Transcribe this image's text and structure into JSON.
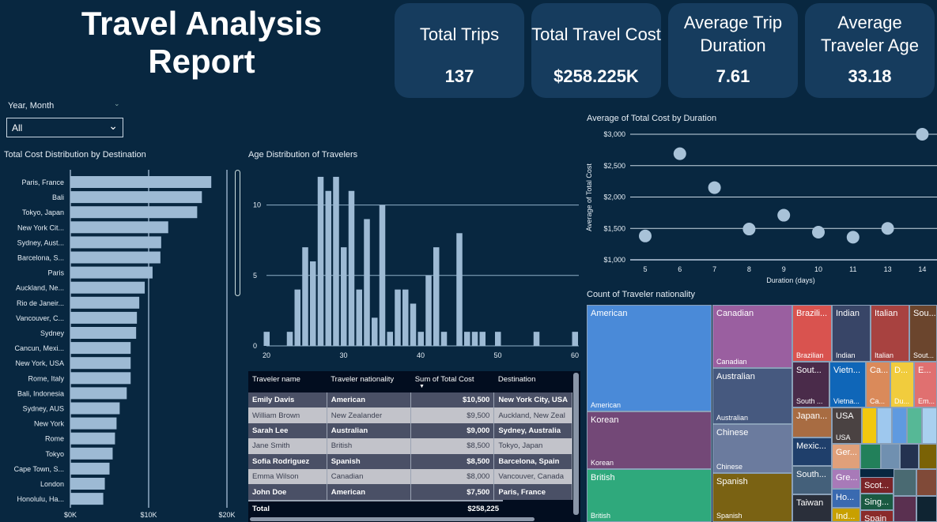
{
  "title": "Travel Analysis Report",
  "kpis": [
    {
      "label": "Total Trips",
      "value": "137"
    },
    {
      "label": "Total Travel Cost",
      "value": "$258.225K"
    },
    {
      "label": "Average Trip Duration",
      "value": "7.61"
    },
    {
      "label": "Average Traveler Age",
      "value": "33.18"
    }
  ],
  "slicer": {
    "label": "Year, Month",
    "value": "All"
  },
  "chart_data": [
    {
      "type": "bar",
      "title": "Total Cost Distribution by Destination",
      "orientation": "horizontal",
      "categories": [
        "Paris, France",
        "Bali",
        "Tokyo, Japan",
        "New York Cit...",
        "Sydney, Aust...",
        "Barcelona, S...",
        "Paris",
        "Auckland, Ne...",
        "Rio de Janeir...",
        "Vancouver, C...",
        "Sydney",
        "Cancun, Mexi...",
        "New York, USA",
        "Rome, Italy",
        "Bali, Indonesia",
        "Sydney, AUS",
        "New York",
        "Rome",
        "Tokyo",
        "Cape Town, S...",
        "London",
        "Honolulu, Ha..."
      ],
      "values": [
        18000,
        16800,
        16200,
        12500,
        11600,
        11500,
        10500,
        9500,
        8800,
        8500,
        8400,
        7700,
        7700,
        7700,
        7200,
        6300,
        5900,
        5700,
        5400,
        5000,
        4400,
        4200
      ],
      "xticks": [
        "$0K",
        "$10K",
        "$20K"
      ],
      "xlim": [
        0,
        20000
      ],
      "grid": true,
      "color": "#9dbad4"
    },
    {
      "type": "bar",
      "title": "Age Distribution of Travelers",
      "x": [
        20,
        23,
        24,
        25,
        26,
        27,
        28,
        29,
        30,
        31,
        32,
        33,
        34,
        35,
        36,
        37,
        38,
        39,
        40,
        41,
        42,
        43,
        45,
        46,
        47,
        48,
        50,
        55,
        60
      ],
      "values": [
        1,
        1,
        4,
        7,
        6,
        12,
        11,
        12,
        7,
        11,
        4,
        9,
        2,
        10,
        1,
        4,
        4,
        3,
        1,
        5,
        7,
        1,
        8,
        1,
        1,
        1,
        1,
        1,
        1
      ],
      "xticks": [
        "20",
        "30",
        "40",
        "50",
        "60"
      ],
      "yticks": [
        "0",
        "5",
        "10"
      ],
      "xlim": [
        20,
        60
      ],
      "ylim": [
        0,
        12.5
      ],
      "grid": true,
      "color": "#9dbad4"
    },
    {
      "type": "scatter",
      "title": "Average of Total Cost by Duration",
      "xlabel": "Duration (days)",
      "ylabel": "Average of Total Cost",
      "categories": [
        "5",
        "6",
        "7",
        "8",
        "9",
        "10",
        "11",
        "13",
        "14"
      ],
      "values": [
        1380,
        2690,
        2150,
        1490,
        1710,
        1440,
        1360,
        1500,
        3000
      ],
      "yticks": [
        "$1,000",
        "$1,500",
        "$2,000",
        "$2,500",
        "$3,000"
      ],
      "ylim": [
        1000,
        3000
      ],
      "grid": true,
      "color": "#a8c2d8"
    }
  ],
  "table": {
    "columns": [
      "Traveler name",
      "Traveler nationality",
      "Sum of Total Cost",
      "Destination"
    ],
    "rows": [
      [
        "Emily Davis",
        "American",
        "$10,500",
        "New York City, USA"
      ],
      [
        "William Brown",
        "New Zealander",
        "$9,500",
        "Auckland, New Zeal"
      ],
      [
        "Sarah Lee",
        "Australian",
        "$9,000",
        "Sydney, Australia"
      ],
      [
        "Jane Smith",
        "British",
        "$8,500",
        "Tokyo, Japan"
      ],
      [
        "Sofia Rodriguez",
        "Spanish",
        "$8,500",
        "Barcelona, Spain"
      ],
      [
        "Emma Wilson",
        "Canadian",
        "$8,000",
        "Vancouver, Canada"
      ],
      [
        "John Doe",
        "American",
        "$7,500",
        "Paris, France"
      ]
    ],
    "total_label": "Total",
    "total_value": "$258,225",
    "sort": "descending"
  },
  "treemap": {
    "title": "Count of Traveler nationality",
    "cells": [
      {
        "t": "American",
        "b": "American",
        "c": "#4a8ad8"
      },
      {
        "t": "Korean",
        "b": "Korean",
        "c": "#734877"
      },
      {
        "t": "British",
        "b": "British",
        "c": "#2fa97c"
      },
      {
        "t": "Canadian",
        "b": "Canadian",
        "c": "#9a5fa0"
      },
      {
        "t": "Australian",
        "b": "Australian",
        "c": "#46597f"
      },
      {
        "t": "Chinese",
        "b": "Chinese",
        "c": "#6b7b9e"
      },
      {
        "t": "Spanish",
        "b": "Spanish",
        "c": "#7a6213"
      },
      {
        "t": "Brazili...",
        "b": "Brazilian",
        "c": "#d9534f"
      },
      {
        "t": "Indian",
        "b": "Indian",
        "c": "#384567"
      },
      {
        "t": "Italian",
        "b": "Italian",
        "c": "#a84240"
      },
      {
        "t": "Sou...",
        "b": "Sout...",
        "c": "#6b452d"
      },
      {
        "t": "Sout...",
        "b": "South ...",
        "c": "#4a2b4a"
      },
      {
        "t": "Vietn...",
        "b": "Vietna...",
        "c": "#0f66b8"
      },
      {
        "t": "Ca...",
        "b": "Ca...",
        "c": "#da8a5a"
      },
      {
        "t": "D...",
        "b": "Du...",
        "c": "#f1cc3d"
      },
      {
        "t": "E...",
        "b": "Em...",
        "c": "#e07070"
      },
      {
        "t": "Japan...",
        "b": "",
        "c": "#a86c42"
      },
      {
        "t": "USA",
        "b": "USA",
        "c": "#4a4242"
      },
      {
        "t": "Mexic...",
        "b": "",
        "c": "#1f3f6b"
      },
      {
        "t": "Ger...",
        "b": "",
        "c": "#e0a07a"
      },
      {
        "t": "South...",
        "b": "",
        "c": "#44607a"
      },
      {
        "t": "Gre...",
        "b": "",
        "c": "#a87ab8"
      },
      {
        "t": "Taiwan",
        "b": "",
        "c": "#2a2f3a"
      },
      {
        "t": "Ho...",
        "b": "",
        "c": "#3a6ab0"
      },
      {
        "t": "Ind...",
        "b": "",
        "c": "#c8a000"
      },
      {
        "t": "Scot...",
        "b": "",
        "c": "#7a2428"
      },
      {
        "t": "Sing...",
        "b": "",
        "c": "#1a5a42"
      },
      {
        "t": "Spain",
        "b": "",
        "c": "#8a2a2a"
      },
      {
        "t": "",
        "b": "",
        "c": "#f2c80f"
      },
      {
        "t": "",
        "b": "",
        "c": "#9ec8ee"
      },
      {
        "t": "",
        "b": "",
        "c": "#5f9ae0"
      },
      {
        "t": "",
        "b": "",
        "c": "#56b896"
      },
      {
        "t": "",
        "b": "",
        "c": "#a9d0ef"
      },
      {
        "t": "",
        "b": "",
        "c": "#22805a"
      },
      {
        "t": "",
        "b": "",
        "c": "#7090b0"
      },
      {
        "t": "",
        "b": "",
        "c": "#243250"
      },
      {
        "t": "",
        "b": "",
        "c": "#7a6205"
      },
      {
        "t": "",
        "b": "",
        "c": "#4a6a72"
      },
      {
        "t": "",
        "b": "",
        "c": "#804a38"
      },
      {
        "t": "",
        "b": "",
        "c": "#5a3050"
      },
      {
        "t": "",
        "b": "",
        "c": "#0f2432"
      }
    ]
  }
}
